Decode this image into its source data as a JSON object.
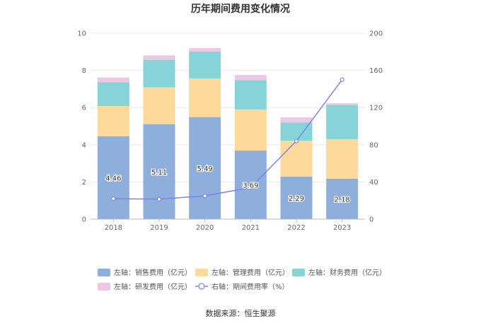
{
  "chart_data": {
    "type": "bar",
    "title": "历年期间费用变化情况",
    "categories": [
      "2018",
      "2019",
      "2020",
      "2021",
      "2022",
      "2023"
    ],
    "series": [
      {
        "name": "左轴：销售费用（亿元）",
        "values": [
          4.46,
          5.11,
          5.49,
          3.69,
          2.29,
          2.18
        ],
        "color": "#8eaedb",
        "kind": "bar"
      },
      {
        "name": "左轴：管理费用（亿元）",
        "values": [
          1.62,
          1.98,
          2.08,
          2.21,
          1.93,
          2.12
        ],
        "color": "#fdd99b",
        "kind": "bar"
      },
      {
        "name": "左轴：财务费用（亿元）",
        "values": [
          1.28,
          1.48,
          1.44,
          1.58,
          0.97,
          1.85
        ],
        "color": "#86d4d8",
        "kind": "bar"
      },
      {
        "name": "左轴：研发费用（亿元）",
        "values": [
          0.26,
          0.24,
          0.19,
          0.27,
          0.29,
          0.08
        ],
        "color": "#ecc8e4",
        "kind": "bar"
      },
      {
        "name": "右轴：期间费用率（%）",
        "values": [
          22,
          21.5,
          25,
          34,
          84,
          150
        ],
        "color": "#7b84e9",
        "kind": "line"
      }
    ],
    "data_labels": [
      "4.46",
      "5.11",
      "5.49",
      "3.69",
      "2.29",
      "2.18"
    ],
    "y_left": {
      "ylim": [
        0,
        10
      ],
      "ticks": [
        "0",
        "2",
        "4",
        "6",
        "8",
        "10"
      ]
    },
    "y_right": {
      "ylim": [
        0,
        200
      ],
      "ticks": [
        "0",
        "40",
        "80",
        "120",
        "160",
        "200"
      ]
    },
    "grid": true,
    "legend_position": "bottom"
  },
  "source": "数据来源：恒生聚源"
}
